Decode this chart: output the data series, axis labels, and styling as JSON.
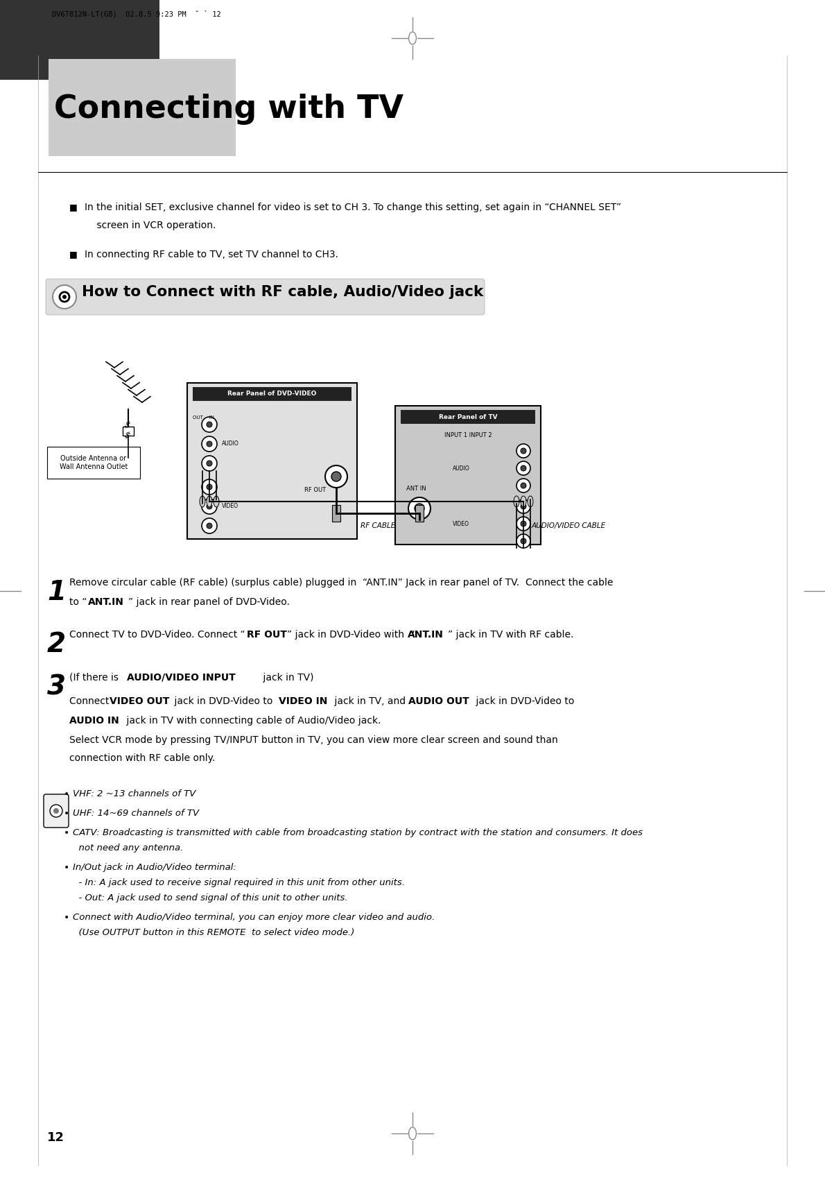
{
  "page_width": 11.9,
  "page_height": 17.04,
  "bg_color": "#ffffff",
  "header_text": "DV6T812N-LT(GB)  02.8.5 9:23 PM  ˘ ` 12",
  "dark_bar_color": "#333333",
  "light_box_color": "#cccccc",
  "title": "Connecting with TV",
  "section_header": "How to Connect with RF cable, Audio/Video jack",
  "bullet1a": "In the initial SET, exclusive channel for video is set to CH 3. To change this setting, set again in “CHANNEL SET”",
  "bullet1b": "    screen in VCR operation.",
  "bullet2": "In connecting RF cable to TV, set TV channel to CH3.",
  "notes": [
    "VHF: 2 ~13 channels of TV",
    "UHF: 14~69 channels of TV",
    "CATV: Broadcasting is transmitted with cable from broadcasting station by contract with the station and consumers. It does\n  not need any antenna.",
    "In/Out jack in Audio/Video terminal:\n  - In: A jack used to receive signal required in this unit from other units.\n  - Out: A jack used to send signal of this unit to other units.",
    "Connect with Audio/Video terminal, you can enjoy more clear video and audio.\n  (Use OUTPUT button in this REMOTE  to select video mode.)"
  ],
  "page_num": "12",
  "diagram_label_dvd": "Rear Panel of DVD-VIDEO",
  "diagram_label_tv": "Rear Panel of TV",
  "diagram_label_ant": "Outside Antenna or\nWall Antenna Outlet",
  "diagram_label_input1": "INPUT 1 INPUT 2",
  "diagram_label_audio": "AUDIO",
  "diagram_label_video": "VIDEO",
  "diagram_label_rf": "RF OUT",
  "diagram_label_ant_in": "ANT IN",
  "diagram_rf_cable": "RF CABLE",
  "diagram_av_cable": "AUDIO/VIDEO CABLE"
}
